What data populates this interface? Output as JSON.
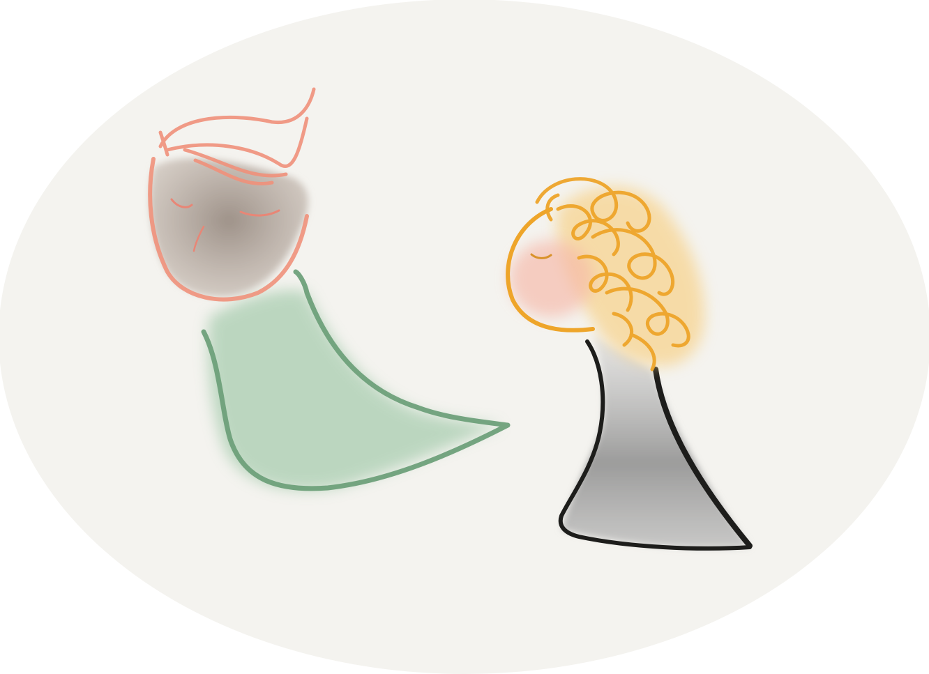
{
  "illustration": {
    "kind": "watercolor sketch",
    "subjects": [
      "person-with-red-hair",
      "person-with-curly-orange-hair"
    ],
    "colors": {
      "background_oval": "#f4f3ef",
      "red_hair_stroke": "#f0917b",
      "face_wash_gray": "#a89a90",
      "green_body": "#6ea07a",
      "green_wash": "#a9cdb0",
      "orange_hair": "#eea52a",
      "orange_wash": "#f7d28a",
      "pink_cheek": "#f6b8a8",
      "black_body": "#1d1d1b",
      "gray_wash": "#9c9c9c"
    }
  }
}
